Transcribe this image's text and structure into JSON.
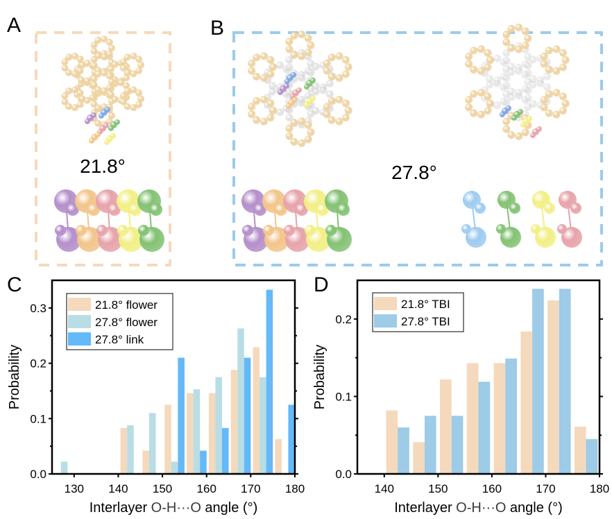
{
  "panels": {
    "A": {
      "label": "A",
      "angle": "21.8°",
      "frame_color": "#f5d9bc"
    },
    "B": {
      "label": "B",
      "angle": "27.8°",
      "frame_color": "#9dcbe8"
    },
    "C": {
      "label": "C"
    },
    "D": {
      "label": "D"
    }
  },
  "molecule_colors": {
    "tan": "#eed3a2",
    "gray": "#d6d6d6",
    "purple": "#b58fcb",
    "blue": "#7fa6e3",
    "pink": "#e6a3aa",
    "green": "#84c274",
    "yellow": "#f2ef86",
    "orange": "#f2c58a",
    "light_blue": "#9ecbf0"
  },
  "chart_data": [
    {
      "type": "bar",
      "panel": "C",
      "xlabel_parts": [
        "Interlayer ",
        "O-H···O",
        " angle (°)"
      ],
      "ylabel": "Probability",
      "xlim": [
        125,
        180
      ],
      "ylim": [
        0,
        0.35
      ],
      "xticks": [
        "130",
        "140",
        "150",
        "160",
        "170",
        "180"
      ],
      "yticks": [
        "0.0",
        "0.1",
        "0.2",
        "0.3"
      ],
      "bin_edges": [
        125,
        130,
        135,
        140,
        145,
        150,
        155,
        160,
        165,
        170,
        175,
        180
      ],
      "legend_position": "top-left",
      "grid": false,
      "series": [
        {
          "name": "21.8° flower",
          "color": "#f5d9bc",
          "values": [
            0,
            0,
            0,
            0.083,
            0.042,
            0.125,
            0.146,
            0.146,
            0.188,
            0.229,
            0.063
          ]
        },
        {
          "name": "27.8° flower",
          "color": "#b9dde4",
          "values": [
            0.022,
            0,
            0,
            0.088,
            0.11,
            0.022,
            0.153,
            0.175,
            0.263,
            0.175,
            0
          ]
        },
        {
          "name": "27.8° link",
          "color": "#64b9f8",
          "values": [
            0,
            0,
            0,
            0,
            0,
            0.21,
            0.042,
            0.083,
            0.21,
            0.333,
            0.125
          ]
        }
      ]
    },
    {
      "type": "bar",
      "panel": "D",
      "xlabel_parts": [
        "Interlayer ",
        "O-H···O",
        " angle (°)"
      ],
      "ylabel": "Probability",
      "xlim": [
        135,
        180
      ],
      "ylim": [
        0,
        0.25
      ],
      "xticks": [
        "140",
        "150",
        "160",
        "170",
        "180"
      ],
      "yticks": [
        "0.0",
        "0.1",
        "0.2"
      ],
      "bin_edges": [
        140,
        145,
        150,
        155,
        160,
        165,
        170,
        175,
        180
      ],
      "legend_position": "top-left",
      "grid": false,
      "series": [
        {
          "name": "21.8° TBI",
          "color": "#f5d9bc",
          "values": [
            0.082,
            0.041,
            0.122,
            0.143,
            0.143,
            0.184,
            0.224,
            0.061
          ]
        },
        {
          "name": "27.8° TBI",
          "color": "#9dcbe8",
          "values": [
            0.06,
            0.075,
            0.075,
            0.119,
            0.149,
            0.239,
            0.239,
            0.045
          ]
        }
      ]
    }
  ]
}
